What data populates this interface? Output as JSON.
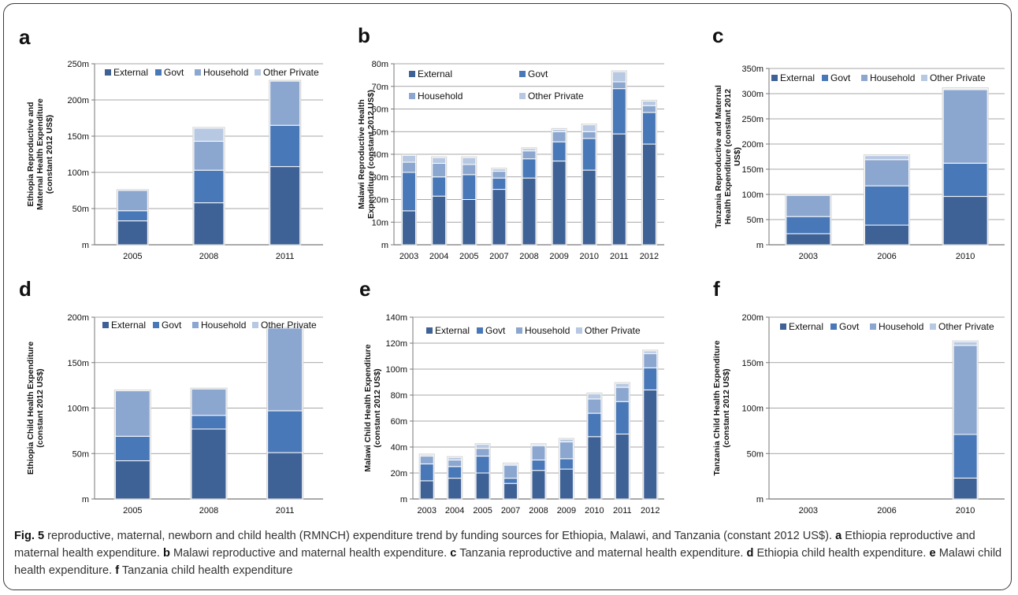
{
  "colors": {
    "External": "#3e6196",
    "Govt": "#4978b8",
    "Household": "#8ca7cf",
    "Other Private": "#b7c8e2"
  },
  "chart_data": [
    {
      "panel": "a",
      "type": "bar",
      "stacked": true,
      "ylabel": "Ethiopia Reproductive and Maternal Health Expenditure (constant 2012 US$)",
      "ylabel_lines": [
        "Ethiopia Reproductive and",
        "Maternal Health Expenditure",
        "(constant 2012 US$)"
      ],
      "yticks": [
        0,
        50,
        100,
        150,
        200,
        250
      ],
      "ytick_labels": [
        "m",
        "50m",
        "100m",
        "150m",
        "200m",
        "250m"
      ],
      "ylim": [
        0,
        250
      ],
      "legend_layout": "row",
      "categories": [
        "2005",
        "2008",
        "2011"
      ],
      "series": [
        {
          "name": "External",
          "values": [
            33,
            58,
            108
          ]
        },
        {
          "name": "Govt",
          "values": [
            14,
            45,
            57
          ]
        },
        {
          "name": "Household",
          "values": [
            28,
            40,
            61
          ]
        },
        {
          "name": "Other Private",
          "values": [
            0,
            18,
            0
          ]
        }
      ]
    },
    {
      "panel": "b",
      "type": "bar",
      "stacked": true,
      "ylabel": "Malawi Reproductive Health Expenditure (constant 2012 US$)",
      "ylabel_lines": [
        "Malawi Reproductive Health",
        "Expenditure (constant 2012 US$)"
      ],
      "yticks": [
        0,
        10,
        20,
        30,
        40,
        50,
        60,
        70,
        80
      ],
      "ytick_labels": [
        "m",
        "10m",
        "20m",
        "30m",
        "40m",
        "50m",
        "60m",
        "70m",
        "80m"
      ],
      "ylim": [
        0,
        80
      ],
      "legend_layout": "grid",
      "categories": [
        "2003",
        "2004",
        "2005",
        "2007",
        "2008",
        "2009",
        "2010",
        "2011",
        "2012"
      ],
      "series": [
        {
          "name": "External",
          "values": [
            15,
            21.5,
            20,
            24.5,
            29.5,
            37,
            33,
            49,
            44.5
          ]
        },
        {
          "name": "Govt",
          "values": [
            17,
            8.5,
            11,
            5,
            8.5,
            8.5,
            14,
            20,
            14
          ]
        },
        {
          "name": "Household",
          "values": [
            4.5,
            6,
            4.5,
            3,
            3.5,
            4.5,
            3,
            3,
            3
          ]
        },
        {
          "name": "Other Private",
          "values": [
            3,
            2.5,
            3,
            1,
            1,
            1,
            3,
            4.5,
            2
          ]
        }
      ]
    },
    {
      "panel": "c",
      "type": "bar",
      "stacked": true,
      "ylabel": "Tanzania Reproductive and Maternal Health Expenditure (constant 2012 US$)",
      "ylabel_lines": [
        "Tanzania Reproductive and Maternal",
        "Health Expenditure (constant 2012",
        "US$)"
      ],
      "yticks": [
        0,
        50,
        100,
        150,
        200,
        250,
        300,
        350
      ],
      "ytick_labels": [
        "m",
        "50m",
        "100m",
        "150m",
        "200m",
        "250m",
        "300m",
        "350m"
      ],
      "ylim": [
        0,
        350
      ],
      "legend_layout": "row",
      "categories": [
        "2003",
        "2006",
        "2010"
      ],
      "series": [
        {
          "name": "External",
          "values": [
            22,
            39,
            96
          ]
        },
        {
          "name": "Govt",
          "values": [
            34,
            78,
            66
          ]
        },
        {
          "name": "Household",
          "values": [
            42,
            52,
            146
          ]
        },
        {
          "name": "Other Private",
          "values": [
            0,
            8,
            2
          ]
        }
      ]
    },
    {
      "panel": "d",
      "type": "bar",
      "stacked": true,
      "ylabel": "Ethiopia Child Health Expenditure (constant 2012 US$)",
      "ylabel_lines": [
        "Ethiopia Child Health Expenditure",
        "(constant 2012 US$)"
      ],
      "yticks": [
        0,
        50,
        100,
        150,
        200
      ],
      "ytick_labels": [
        "m",
        "50m",
        "100m",
        "150m",
        "200m"
      ],
      "ylim": [
        0,
        200
      ],
      "legend_layout": "row",
      "categories": [
        "2005",
        "2008",
        "2011"
      ],
      "series": [
        {
          "name": "External",
          "values": [
            42,
            77,
            51
          ]
        },
        {
          "name": "Govt",
          "values": [
            27,
            15,
            46
          ]
        },
        {
          "name": "Household",
          "values": [
            50,
            29,
            91
          ]
        },
        {
          "name": "Other Private",
          "values": [
            0,
            0,
            0
          ]
        }
      ]
    },
    {
      "panel": "e",
      "type": "bar",
      "stacked": true,
      "ylabel": "Malawi Child Health Expenditure (constant 2012 US$)",
      "ylabel_lines": [
        "Malawi Child Health Expenditure",
        "(constant 2012 US$)"
      ],
      "yticks": [
        0,
        20,
        40,
        60,
        80,
        100,
        120,
        140
      ],
      "ytick_labels": [
        "m",
        "20m",
        "40m",
        "60m",
        "80m",
        "100m",
        "120m",
        "140m"
      ],
      "ylim": [
        0,
        140
      ],
      "legend_layout": "row",
      "categories": [
        "2003",
        "2004",
        "2005",
        "2007",
        "2008",
        "2009",
        "2010",
        "2011",
        "2012"
      ],
      "series": [
        {
          "name": "External",
          "values": [
            14,
            16,
            20,
            12,
            22,
            23,
            48,
            50,
            84
          ]
        },
        {
          "name": "Govt",
          "values": [
            13,
            9,
            13,
            4,
            8,
            8,
            18,
            25,
            17
          ]
        },
        {
          "name": "Household",
          "values": [
            6,
            5,
            6,
            10,
            11,
            13,
            11,
            11,
            11
          ]
        },
        {
          "name": "Other Private",
          "values": [
            1,
            2,
            3,
            1,
            1,
            2,
            4,
            3,
            2
          ]
        }
      ]
    },
    {
      "panel": "f",
      "type": "bar",
      "stacked": true,
      "ylabel": "Tanzania Child Health Expenditure (constant 2012 US$)",
      "ylabel_lines": [
        "Tanzania Child Health Expenditure",
        "(constant 2012 US$)"
      ],
      "yticks": [
        0,
        50,
        100,
        150,
        200
      ],
      "ytick_labels": [
        "m",
        "50m",
        "100m",
        "150m",
        "200m"
      ],
      "ylim": [
        0,
        200
      ],
      "legend_layout": "row",
      "categories": [
        "2003",
        "2006",
        "2010"
      ],
      "series": [
        {
          "name": "External",
          "values": [
            0,
            0,
            23
          ]
        },
        {
          "name": "Govt",
          "values": [
            0,
            0,
            48
          ]
        },
        {
          "name": "Household",
          "values": [
            0,
            0,
            98
          ]
        },
        {
          "name": "Other Private",
          "values": [
            0,
            0,
            4
          ]
        }
      ]
    }
  ],
  "caption": {
    "fig_label": "Fig. 5",
    "text": " reproductive, maternal, newborn and child health (RMNCH) expenditure trend by funding sources for Ethiopia, Malawi, and Tanzania (constant 2012 US$). ",
    "items": [
      {
        "key": "a",
        "text": " Ethiopia reproductive and maternal health expenditure. "
      },
      {
        "key": "b",
        "text": " Malawi reproductive and maternal health expenditure. "
      },
      {
        "key": "c",
        "text": " Tanzania reproductive and maternal health expenditure. "
      },
      {
        "key": "d",
        "text": " Ethiopia child health expenditure. "
      },
      {
        "key": "e",
        "text": " Malawi child health expenditure. "
      },
      {
        "key": "f",
        "text": " Tanzania child health expenditure"
      }
    ]
  }
}
